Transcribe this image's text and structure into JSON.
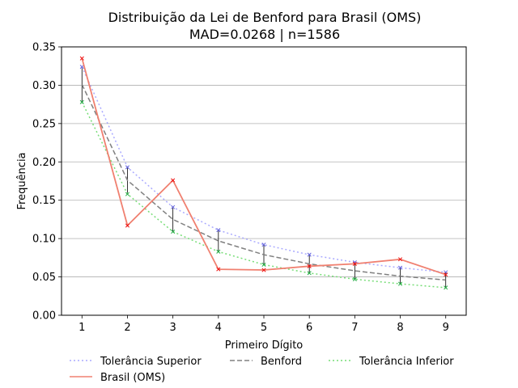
{
  "chart_data": {
    "type": "line",
    "title": "Distribuição da Lei de Benford para Brasil (OMS)",
    "subtitle": "MAD=0.0268 | n=1586",
    "xlabel": "Primeiro Dígito",
    "ylabel": "Frequência",
    "x": [
      1,
      2,
      3,
      4,
      5,
      6,
      7,
      8,
      9
    ],
    "xlim": [
      0.55,
      9.45
    ],
    "ylim": [
      0,
      0.35
    ],
    "yticks": [
      "0.00",
      "0.05",
      "0.10",
      "0.15",
      "0.20",
      "0.25",
      "0.30",
      "0.35"
    ],
    "xticks": [
      "1",
      "2",
      "3",
      "4",
      "5",
      "6",
      "7",
      "8",
      "9"
    ],
    "grid": "horizontal",
    "legend_position": "bottom",
    "series": [
      {
        "name": "Tolerância Superior",
        "color": "#aaaaff",
        "style": "dotted",
        "marker": "x",
        "values": [
          0.324,
          0.193,
          0.141,
          0.111,
          0.092,
          0.079,
          0.069,
          0.062,
          0.056
        ]
      },
      {
        "name": "Benford",
        "color": "#808080",
        "style": "dashed",
        "marker": "none",
        "values": [
          0.301,
          0.176,
          0.125,
          0.097,
          0.079,
          0.067,
          0.058,
          0.051,
          0.046
        ]
      },
      {
        "name": "Tolerância Inferior",
        "color": "#77dd77",
        "style": "dotted",
        "marker": "x",
        "values": [
          0.278,
          0.158,
          0.109,
          0.083,
          0.066,
          0.055,
          0.047,
          0.041,
          0.036
        ]
      },
      {
        "name": "Brasil (OMS)",
        "color": "#f08070",
        "style": "solid",
        "marker": "x",
        "values": [
          0.335,
          0.117,
          0.176,
          0.06,
          0.059,
          0.064,
          0.067,
          0.073,
          0.053
        ]
      }
    ],
    "marker_colors": {
      "upper": "#6666dd",
      "lower": "#22aa44",
      "observed": "#ee1111"
    }
  }
}
